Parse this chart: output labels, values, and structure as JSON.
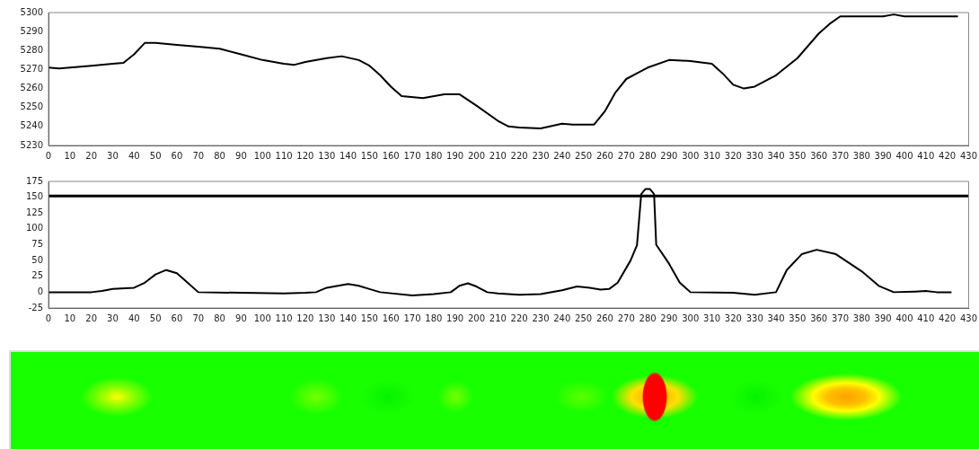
{
  "chart_data": [
    {
      "type": "line",
      "x": [
        0,
        5,
        10,
        20,
        30,
        35,
        40,
        45,
        50,
        60,
        70,
        80,
        90,
        100,
        110,
        115,
        120,
        130,
        137,
        145,
        150,
        155,
        160,
        165,
        175,
        185,
        192,
        200,
        210,
        215,
        220,
        230,
        240,
        245,
        255,
        260,
        265,
        270,
        275,
        280,
        290,
        300,
        310,
        315,
        320,
        325,
        330,
        340,
        350,
        360,
        365,
        370,
        380,
        390,
        395,
        400,
        410,
        425
      ],
      "series": [
        {
          "color": "#000000",
          "values": [
            5271,
            5270.5,
            5271,
            5272,
            5273,
            5273.5,
            5278,
            5284,
            5284,
            5283,
            5282,
            5281,
            5278,
            5275,
            5273,
            5272.5,
            5274,
            5276,
            5277,
            5275,
            5272,
            5267,
            5261,
            5256,
            5255,
            5257,
            5257,
            5251,
            5243,
            5240,
            5239.5,
            5239,
            5241.5,
            5241,
            5241,
            5248,
            5258,
            5265,
            5268,
            5271,
            5275,
            5274.5,
            5273,
            5268,
            5262,
            5260,
            5261,
            5267,
            5276,
            5289,
            5294,
            5298,
            5298,
            5298,
            5299,
            5298,
            5298,
            5298
          ]
        }
      ],
      "xlim": [
        0,
        430
      ],
      "ylim": [
        5230,
        5300
      ],
      "xticks": [
        0,
        10,
        20,
        30,
        40,
        50,
        60,
        70,
        80,
        90,
        100,
        110,
        120,
        130,
        140,
        150,
        160,
        170,
        180,
        190,
        200,
        210,
        220,
        230,
        240,
        250,
        260,
        270,
        280,
        290,
        300,
        310,
        320,
        330,
        340,
        350,
        360,
        370,
        380,
        390,
        400,
        410,
        420,
        430
      ],
      "yticks": [
        5230,
        5240,
        5250,
        5260,
        5270,
        5280,
        5290,
        5300
      ],
      "grid": false,
      "legend": false,
      "marker": "none",
      "line_style": "solid"
    },
    {
      "type": "line",
      "x": [
        0,
        20,
        25,
        30,
        40,
        45,
        50,
        55,
        60,
        65,
        70,
        110,
        120,
        125,
        130,
        140,
        145,
        150,
        155,
        170,
        180,
        188,
        192,
        196,
        200,
        205,
        210,
        220,
        230,
        240,
        247,
        253,
        258,
        262,
        266,
        272,
        275,
        277,
        279,
        281,
        283,
        284,
        290,
        295,
        300,
        320,
        330,
        340,
        345,
        352,
        359,
        368,
        380,
        388,
        395,
        405,
        410,
        415,
        422
      ],
      "series": [
        {
          "color": "#000000",
          "values": [
            0,
            0,
            2,
            5,
            7,
            15,
            28,
            35,
            30,
            15,
            0,
            -2,
            -1,
            0,
            7,
            13,
            10,
            5,
            0,
            -5,
            -3,
            0,
            10,
            14,
            9,
            0,
            -2,
            -4,
            -3,
            3,
            9,
            7,
            4,
            5,
            15,
            50,
            74,
            155,
            163,
            163,
            155,
            75,
            45,
            15,
            0,
            -1,
            -4,
            0,
            35,
            60,
            67,
            60,
            33,
            10,
            0,
            1,
            2,
            0,
            0
          ]
        }
      ],
      "xlim": [
        0,
        430
      ],
      "ylim": [
        -25,
        175
      ],
      "xticks": [
        0,
        10,
        20,
        30,
        40,
        50,
        60,
        70,
        80,
        90,
        100,
        110,
        120,
        130,
        140,
        150,
        160,
        170,
        180,
        190,
        200,
        210,
        220,
        230,
        240,
        250,
        260,
        270,
        280,
        290,
        300,
        310,
        320,
        330,
        340,
        350,
        360,
        370,
        380,
        390,
        400,
        410,
        420,
        430
      ],
      "yticks": [
        -25,
        0,
        25,
        50,
        75,
        100,
        125,
        150,
        175
      ],
      "grid": false,
      "legend": false,
      "marker": "none",
      "line_style": "solid",
      "ref_lines": [
        {
          "axis": "y",
          "value": 152,
          "color": "#000000"
        }
      ]
    }
  ]
}
